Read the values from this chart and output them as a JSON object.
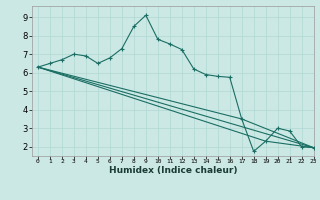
{
  "bg_color": "#cce8e4",
  "grid_color_major": "#b0d8d4",
  "grid_color_minor": "#d0ecea",
  "line_color": "#1a6e64",
  "xlabel": "Humidex (Indice chaleur)",
  "xlim": [
    -0.5,
    23
  ],
  "ylim": [
    1.5,
    9.6
  ],
  "yticks": [
    2,
    3,
    4,
    5,
    6,
    7,
    8,
    9
  ],
  "xticks": [
    0,
    1,
    2,
    3,
    4,
    5,
    6,
    7,
    8,
    9,
    10,
    11,
    12,
    13,
    14,
    15,
    16,
    17,
    18,
    19,
    20,
    21,
    22,
    23
  ],
  "series": [
    [
      0,
      6.3
    ],
    [
      1,
      6.5
    ],
    [
      2,
      6.7
    ],
    [
      3,
      7.0
    ],
    [
      4,
      6.9
    ],
    [
      5,
      6.5
    ],
    [
      6,
      6.8
    ],
    [
      7,
      7.3
    ],
    [
      8,
      8.5
    ],
    [
      9,
      9.1
    ],
    [
      10,
      7.8
    ],
    [
      11,
      7.55
    ],
    [
      12,
      7.25
    ],
    [
      13,
      6.2
    ],
    [
      14,
      5.9
    ],
    [
      15,
      5.8
    ],
    [
      16,
      5.75
    ],
    [
      17,
      3.5
    ],
    [
      18,
      1.75
    ],
    [
      19,
      2.3
    ],
    [
      20,
      3.0
    ],
    [
      21,
      2.85
    ],
    [
      22,
      2.0
    ],
    [
      23,
      1.95
    ]
  ],
  "line2": [
    [
      0,
      6.3
    ],
    [
      23,
      1.95
    ]
  ],
  "line3": [
    [
      0,
      6.3
    ],
    [
      17,
      3.5
    ],
    [
      23,
      1.95
    ]
  ],
  "line4": [
    [
      0,
      6.3
    ],
    [
      19,
      2.3
    ],
    [
      23,
      1.95
    ]
  ]
}
